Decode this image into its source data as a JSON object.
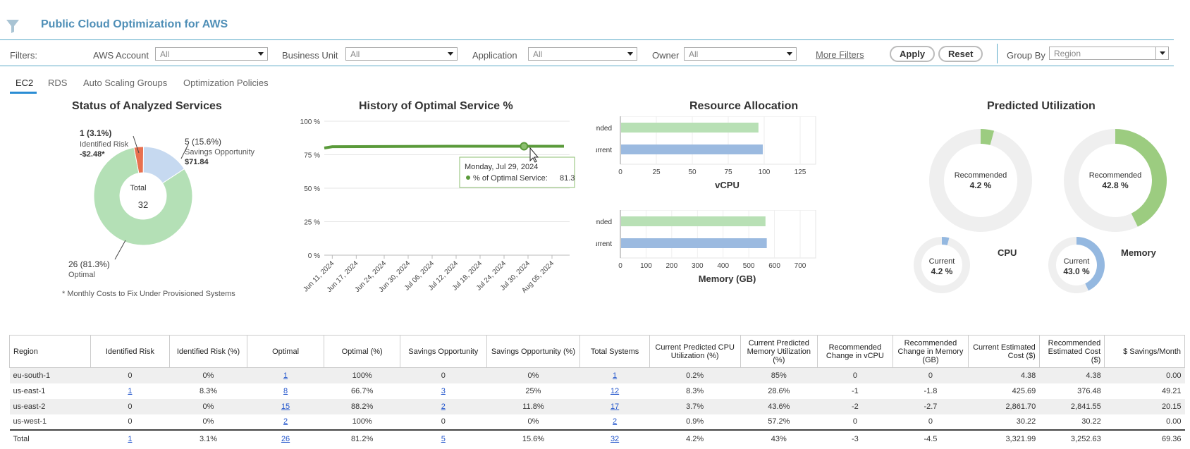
{
  "app": {
    "title": "Public Cloud Optimization for AWS"
  },
  "filters": {
    "label": "Filters:",
    "aws_account": {
      "label": "AWS Account",
      "value": "All"
    },
    "business_unit": {
      "label": "Business Unit",
      "value": "All"
    },
    "application": {
      "label": "Application",
      "value": "All"
    },
    "owner": {
      "label": "Owner",
      "value": "All"
    },
    "more_filters": "More Filters",
    "apply": "Apply",
    "reset": "Reset",
    "group_by": {
      "label": "Group By",
      "value": "Region"
    }
  },
  "tabs": [
    "EC2",
    "RDS",
    "Auto Scaling Groups",
    "Optimization Policies"
  ],
  "status_panel": {
    "title": "Status of Analyzed Services",
    "total_label": "Total",
    "total_value": "32",
    "risk": {
      "count": "1 (3.1%)",
      "label": "Identified Risk",
      "value": "-$2.48*"
    },
    "savings": {
      "count": "5 (15.6%)",
      "label": "Savings Opportunity",
      "value": "$71.84"
    },
    "optimal": {
      "count": "26 (81.3%)",
      "label": "Optimal"
    },
    "footnote": "* Monthly Costs to Fix Under Provisioned Systems",
    "colors": {
      "risk": "#e8704f",
      "savings": "#c6d9f0",
      "optimal": "#b4e0b6"
    }
  },
  "history_panel": {
    "title": "History of Optimal Service %",
    "tooltip": {
      "date": "Monday, Jul 29, 2024",
      "series_label": "% of Optimal Service:",
      "value": "81.3"
    },
    "chart_data": {
      "type": "line",
      "y_ticks": [
        "100 %",
        "75 %",
        "50 %",
        "25 %",
        "0 %"
      ],
      "x_ticks": [
        "Jun 11, 2024",
        "Jun 17, 2024",
        "Jun 24, 2024",
        "Jun 30, 2024",
        "Jul 06, 2024",
        "Jul 12, 2024",
        "Jul 18, 2024",
        "Jul 24, 2024",
        "Jul 30, 2024",
        "Aug 05, 2024"
      ],
      "ylim": [
        0,
        100
      ],
      "series": [
        {
          "x": [
            "2024-06-09",
            "2024-06-11",
            "2024-07-11",
            "2024-08-08"
          ],
          "values": [
            80,
            81,
            81.3,
            81.3
          ]
        }
      ],
      "color": "#5a9a3a"
    }
  },
  "resource_panel": {
    "title": "Resource Allocation",
    "vcpu": {
      "chart_data": {
        "type": "bar",
        "categories": [
          "Recommended",
          "Current"
        ],
        "values": [
          96,
          99
        ],
        "xlabel": "vCPU",
        "xlim": [
          0,
          125
        ],
        "ticks": [
          "0",
          "25",
          "50",
          "75",
          "100",
          "125"
        ]
      }
    },
    "memory": {
      "chart_data": {
        "type": "bar",
        "categories": [
          "Recommended",
          "Current"
        ],
        "values": [
          565,
          570
        ],
        "xlabel": "Memory (GB)",
        "xlim": [
          0,
          700
        ],
        "ticks": [
          "0",
          "100",
          "200",
          "300",
          "400",
          "500",
          "600",
          "700"
        ]
      }
    },
    "colors": {
      "recommended": "#b8e0b5",
      "current": "#9bbae0"
    }
  },
  "predicted_panel": {
    "title": "Predicted Utilization",
    "cpu": {
      "label": "CPU",
      "recommended_label": "Recommended",
      "recommended_value": "4.2 %",
      "recommended_pct": 4.2,
      "current_label": "Current",
      "current_value": "4.2 %",
      "current_pct": 4.2
    },
    "memory": {
      "label": "Memory",
      "recommended_label": "Recommended",
      "recommended_value": "42.8 %",
      "recommended_pct": 42.8,
      "current_label": "Current",
      "current_value": "43.0 %",
      "current_pct": 43.0
    },
    "colors": {
      "recommended": "#9ccc80",
      "current": "#94b8e0",
      "track": "#efefef"
    }
  },
  "table": {
    "headers": [
      "Region",
      "Identified Risk",
      "Identified Risk (%)",
      "Optimal",
      "Optimal (%)",
      "Savings Opportunity",
      "Savings Opportunity (%)",
      "Total Systems",
      "Current Predicted CPU Utilization (%)",
      "Current Predicted Memory Utilization (%)",
      "Recommended Change in vCPU",
      "Recommended Change in Memory (GB)",
      "Current Estimated Cost ($)",
      "Recommended Estimated Cost ($)",
      "$ Savings/Month"
    ],
    "rows": [
      [
        "eu-south-1",
        "0",
        "0%",
        "1",
        "100%",
        "0",
        "0%",
        "1",
        "0.2%",
        "85%",
        "0",
        "0",
        "4.38",
        "4.38",
        "0.00"
      ],
      [
        "us-east-1",
        "1",
        "8.3%",
        "8",
        "66.7%",
        "3",
        "25%",
        "12",
        "8.3%",
        "28.6%",
        "-1",
        "-1.8",
        "425.69",
        "376.48",
        "49.21"
      ],
      [
        "us-east-2",
        "0",
        "0%",
        "15",
        "88.2%",
        "2",
        "11.8%",
        "17",
        "3.7%",
        "43.6%",
        "-2",
        "-2.7",
        "2,861.70",
        "2,841.55",
        "20.15"
      ],
      [
        "us-west-1",
        "0",
        "0%",
        "2",
        "100%",
        "0",
        "0%",
        "2",
        "0.9%",
        "57.2%",
        "0",
        "0",
        "30.22",
        "30.22",
        "0.00"
      ]
    ],
    "total": [
      "Total",
      "1",
      "3.1%",
      "26",
      "81.2%",
      "5",
      "15.6%",
      "32",
      "4.2%",
      "43%",
      "-3",
      "-4.5",
      "3,321.99",
      "3,252.63",
      "69.36"
    ]
  }
}
